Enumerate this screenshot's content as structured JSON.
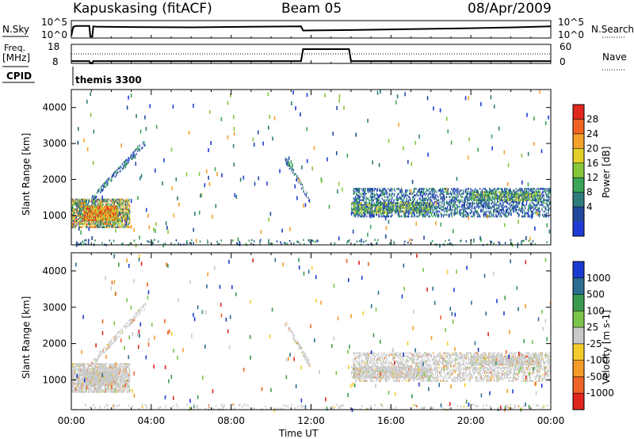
{
  "header": {
    "station": "Kapuskasing (fitACF)",
    "beam": "Beam 05",
    "date": "08/Apr/2009"
  },
  "left_labels": {
    "nsky": "N.Sky",
    "freq": "Freq.",
    "freq_unit": "[MHz]",
    "cpid": "CPID",
    "program": "themis 3300"
  },
  "right_labels": {
    "nsearch": "N.Search",
    "nave": "Nave"
  },
  "x_axis": {
    "label": "Time UT",
    "ticks": [
      "00:00",
      "04:00",
      "08:00",
      "12:00",
      "16:00",
      "20:00",
      "00:00"
    ]
  },
  "colorbars": {
    "power": {
      "label": "Power [dB]",
      "ticks": [
        "4",
        "8",
        "12",
        "16",
        "20",
        "24",
        "28"
      ],
      "colors": [
        "#1f3bd6",
        "#22489c",
        "#2f7c7c",
        "#3aa558",
        "#86c63b",
        "#e2cf2a",
        "#f4a12a",
        "#f06422",
        "#e0281e"
      ]
    },
    "velocity": {
      "label": "Velocity [m s-1]",
      "ticks": [
        "1000",
        "500",
        "100",
        "25",
        "-25",
        "-100",
        "-500",
        "-1000"
      ],
      "colors": [
        "#1a3bd1",
        "#2c6d8f",
        "#3b9a4f",
        "#7bc34a",
        "#c9c9c9",
        "#f4cd2c",
        "#f39a29",
        "#ee6326",
        "#e0251d"
      ]
    }
  },
  "chart_data": [
    {
      "type": "line",
      "title": "N.Sky / N.Search",
      "left_ticks": [
        "10^5",
        "10^0"
      ],
      "right_ticks": [
        "10^5",
        "10^0"
      ],
      "x_range_hours": [
        0,
        24
      ],
      "series": [
        {
          "x": [
            0,
            0.1,
            0.15,
            0.2,
            0.9,
            0.95,
            1.05,
            1.1,
            1.3,
            3,
            6,
            9,
            11.5,
            11.6,
            14,
            16,
            18,
            20,
            22,
            24
          ],
          "y": [
            0.1,
            0.7,
            0.7,
            0.75,
            0.75,
            0.05,
            0.05,
            0.72,
            0.7,
            0.68,
            0.66,
            0.7,
            0.72,
            0.45,
            0.48,
            0.52,
            0.56,
            0.6,
            0.65,
            0.72
          ]
        }
      ]
    },
    {
      "type": "line",
      "title": "Freq. / Nave",
      "left_ticks": [
        "18",
        "8"
      ],
      "right_ticks": [
        "60",
        "0"
      ],
      "x_range_hours": [
        0,
        24
      ],
      "series": [
        {
          "x": [
            0,
            0.9,
            0.95,
            1.05,
            1.1,
            11.5,
            11.6,
            13.9,
            14.0,
            24
          ],
          "y": [
            9.2,
            9.2,
            8.0,
            8.0,
            9.2,
            9.2,
            15.5,
            15.5,
            9.2,
            9.2
          ]
        }
      ]
    },
    {
      "type": "heatmap",
      "title": "Power",
      "xlabel": "Time UT",
      "ylabel": "Slant Range [km]",
      "xlim": [
        0,
        24
      ],
      "ylim": [
        180,
        4500
      ],
      "y_ticks": [
        1000,
        2000,
        3000,
        4000
      ],
      "colorbar_ticks": [
        4,
        8,
        12,
        16,
        20,
        24,
        28
      ],
      "echo_regions": [
        {
          "t0": 0.0,
          "t1": 2.9,
          "r0": 700,
          "r1": 1500,
          "level": "high"
        },
        {
          "t0": 0.6,
          "t1": 2.3,
          "r0": 900,
          "r1": 1300,
          "level": "very-high"
        },
        {
          "t0": 1.0,
          "t1": 3.7,
          "r0": 1500,
          "r1": 3100,
          "level": "low-diagonal"
        },
        {
          "t0": 10.7,
          "t1": 11.9,
          "r0": 1500,
          "r1": 2600,
          "level": "low-diagonal"
        },
        {
          "t0": 14.1,
          "t1": 24.0,
          "r0": 1000,
          "r1": 1800,
          "level": "low"
        },
        {
          "t0": 14.0,
          "t1": 18.0,
          "r0": 1100,
          "r1": 1400,
          "level": "medium"
        },
        {
          "t0": 20.0,
          "t1": 23.5,
          "r0": 1450,
          "r1": 1700,
          "level": "medium"
        }
      ]
    },
    {
      "type": "heatmap",
      "title": "Velocity",
      "xlabel": "Time UT",
      "ylabel": "Slant Range [km]",
      "xlim": [
        0,
        24
      ],
      "ylim": [
        180,
        4500
      ],
      "y_ticks": [
        1000,
        2000,
        3000,
        4000
      ],
      "colorbar_ticks": [
        1000,
        500,
        100,
        25,
        -25,
        -100,
        -500,
        -1000
      ],
      "note": "velocities near zero (grey) dominate, same echo regions as Power"
    }
  ]
}
